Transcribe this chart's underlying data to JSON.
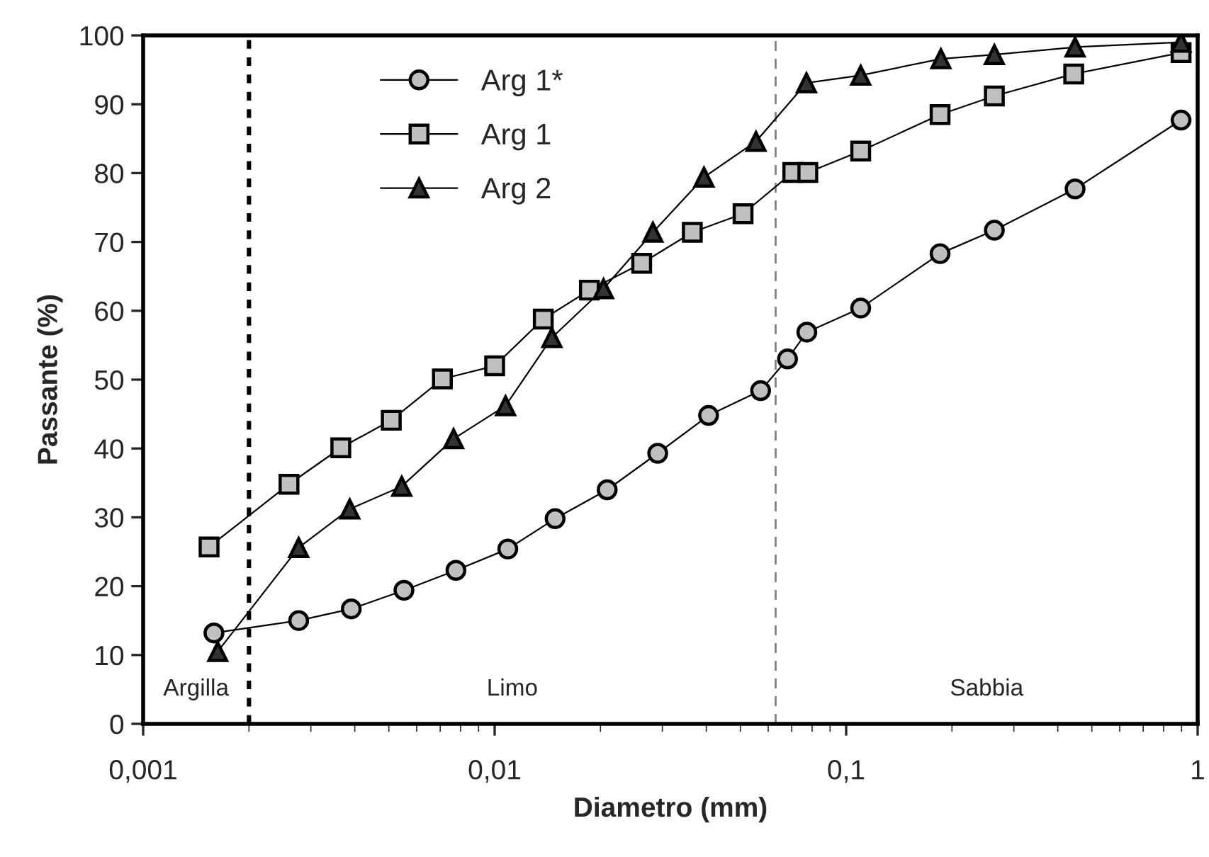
{
  "chart_data": {
    "type": "line",
    "xlabel": "Diametro (mm)",
    "ylabel": "Passante (%)",
    "xlim": [
      0.001,
      1
    ],
    "xticks": [
      {
        "value": 0.001,
        "label": "0,001"
      },
      {
        "value": 0.01,
        "label": "0,01"
      },
      {
        "value": 0.1,
        "label": "0,1"
      },
      1
    ],
    "ylim": [
      0,
      100
    ],
    "yticks": [
      0,
      10,
      20,
      30,
      40,
      50,
      60,
      70,
      80,
      90,
      100
    ],
    "log": "x",
    "grid": false,
    "legend": "top left",
    "series": [
      {
        "name": "Arg 1*",
        "color": "#c0c0c0",
        "marker": "circle",
        "x": [
          0.00159,
          0.00277,
          0.00391,
          0.00552,
          0.00776,
          0.0109,
          0.01486,
          0.0209,
          0.0291,
          0.0406,
          0.0571,
          0.0681,
          0.0773,
          0.11,
          0.185,
          0.264,
          0.448,
          0.897
        ],
        "values": [
          13.2,
          15.0,
          16.7,
          19.4,
          22.3,
          25.4,
          29.8,
          34.0,
          39.3,
          44.8,
          48.4,
          53.0,
          56.9,
          60.4,
          68.3,
          71.7,
          77.7,
          87.7
        ]
      },
      {
        "name": "Arg 1",
        "color": "#c0c0c0",
        "marker": "square",
        "x": [
          0.00154,
          0.0026,
          0.00365,
          0.00508,
          0.0071,
          0.01,
          0.01375,
          0.0186,
          0.0262,
          0.0365,
          0.0509,
          0.0705,
          0.0778,
          0.11,
          0.185,
          0.264,
          0.444,
          0.897
        ],
        "values": [
          25.7,
          34.8,
          40.1,
          44.1,
          50.1,
          52.0,
          58.8,
          63.0,
          66.9,
          71.4,
          74.1,
          80.1,
          80.1,
          83.2,
          88.5,
          91.2,
          94.4,
          97.5
        ]
      },
      {
        "name": "Arg 2",
        "color": "#333333",
        "marker": "triangle",
        "x": [
          0.00163,
          0.00277,
          0.00387,
          0.00544,
          0.00764,
          0.01074,
          0.01455,
          0.0204,
          0.0282,
          0.0394,
          0.0554,
          0.0771,
          0.11,
          0.186,
          0.264,
          0.448,
          0.897
        ],
        "values": [
          10.5,
          25.6,
          31.2,
          34.5,
          41.4,
          46.2,
          56.1,
          63.2,
          71.4,
          79.4,
          84.6,
          93.1,
          94.2,
          96.6,
          97.2,
          98.3,
          99.0
        ]
      }
    ],
    "ref_lines": [
      {
        "axis": "x",
        "value": 0.002,
        "label": null,
        "color": "#000000",
        "line_style": "dotted"
      },
      {
        "axis": "x",
        "value": 0.063,
        "label": null,
        "color": "#808080",
        "line_style": "dashed"
      }
    ],
    "annotations": [
      "Argilla",
      "Limo",
      "Sabbia"
    ]
  }
}
